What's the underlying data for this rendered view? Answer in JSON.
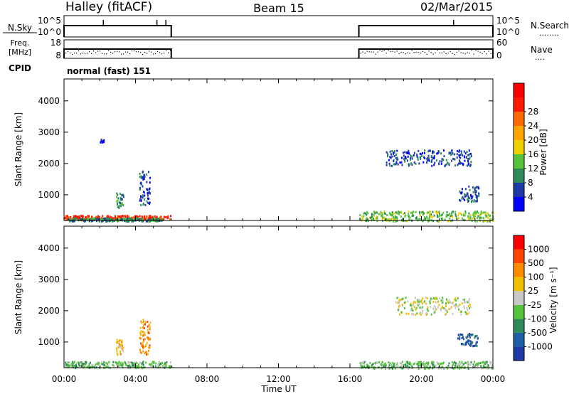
{
  "header": {
    "station": "Halley (fitACF)",
    "beam": "Beam 15",
    "date": "02/Mar/2015"
  },
  "strips": {
    "nsky": {
      "label": "N.Sky",
      "ticks": [
        "10^5",
        "10^0"
      ],
      "right_label": "N.Search",
      "right_ticks": [
        "10^5",
        "10^0"
      ],
      "right_dots": "........"
    },
    "freq": {
      "label_line1": "Freq.",
      "label_line2": "[MHz]",
      "ticks": [
        "18",
        "8"
      ],
      "right_label": "Nave",
      "right_ticks": [
        "60",
        "0"
      ],
      "right_dots": "...."
    },
    "cpid": {
      "label": "CPID",
      "value": "normal (fast) 151"
    },
    "data_segments_ut": [
      [
        0.0,
        6.0
      ],
      [
        16.5,
        24.0
      ]
    ]
  },
  "x_axis": {
    "label": "Time UT",
    "ticks": [
      "00:00",
      "04:00",
      "08:00",
      "12:00",
      "16:00",
      "20:00",
      "00:00"
    ],
    "range_hours": [
      0,
      24
    ]
  },
  "chart_data": [
    {
      "type": "heatmap",
      "name": "power",
      "ylabel": "Slant Range [km]",
      "yticks": [
        "1000",
        "2000",
        "3000",
        "4000"
      ],
      "ylim": [
        180,
        4700
      ],
      "colorbar": {
        "label": "Power [dB]",
        "ticks": [
          "4",
          "8",
          "12",
          "16",
          "20",
          "24",
          "28"
        ],
        "colors": [
          "#0000ff",
          "#1e3aa8",
          "#2e8b57",
          "#55c43a",
          "#f2d000",
          "#ffa500",
          "#ff6a00",
          "#ff1a00",
          "#ff0000"
        ]
      },
      "clusters": [
        {
          "t": [
            0.0,
            6.0
          ],
          "r": [
            220,
            360
          ],
          "color_index": 7
        },
        {
          "t": [
            0.2,
            5.5
          ],
          "r": [
            180,
            280
          ],
          "color_index": 2
        },
        {
          "t": [
            4.2,
            4.8
          ],
          "r": [
            700,
            1800
          ],
          "color_index": 1
        },
        {
          "t": [
            2.9,
            3.3
          ],
          "r": [
            600,
            1100
          ],
          "color_index": 2
        },
        {
          "t": [
            2.0,
            2.2
          ],
          "r": [
            2700,
            2800
          ],
          "color_index": 0
        },
        {
          "t": [
            18.0,
            22.8
          ],
          "r": [
            1950,
            2450
          ],
          "color_index": 1
        },
        {
          "t": [
            22.0,
            23.2
          ],
          "r": [
            800,
            1300
          ],
          "color_index": 1
        },
        {
          "t": [
            16.5,
            24.0
          ],
          "r": [
            180,
            500
          ],
          "color_index": 3
        }
      ]
    },
    {
      "type": "heatmap",
      "name": "velocity",
      "ylabel": "Slant Range [km]",
      "yticks": [
        "1000",
        "2000",
        "3000",
        "4000"
      ],
      "ylim": [
        180,
        4700
      ],
      "colorbar": {
        "label": "Velocity [m s⁻¹]",
        "ticks": [
          "1000",
          "500",
          "100",
          "25",
          "-25",
          "-100",
          "-500",
          "-1000"
        ],
        "colors": [
          "#1e3aa8",
          "#1f5fa8",
          "#2e8b57",
          "#55c43a",
          "#c8c8c8",
          "#f2c000",
          "#ff8c00",
          "#ff4500",
          "#ff0000"
        ]
      },
      "clusters": [
        {
          "t": [
            0.0,
            6.0
          ],
          "r": [
            200,
            400
          ],
          "color_index": 3
        },
        {
          "t": [
            4.2,
            4.8
          ],
          "r": [
            600,
            1800
          ],
          "color_index": 6
        },
        {
          "t": [
            2.9,
            3.3
          ],
          "r": [
            600,
            1100
          ],
          "color_index": 5
        },
        {
          "t": [
            18.5,
            22.8
          ],
          "r": [
            1900,
            2450
          ],
          "color_index": 4
        },
        {
          "t": [
            22.0,
            23.2
          ],
          "r": [
            900,
            1300
          ],
          "color_index": 1
        },
        {
          "t": [
            16.5,
            24.0
          ],
          "r": [
            180,
            400
          ],
          "color_index": 3
        }
      ]
    }
  ]
}
